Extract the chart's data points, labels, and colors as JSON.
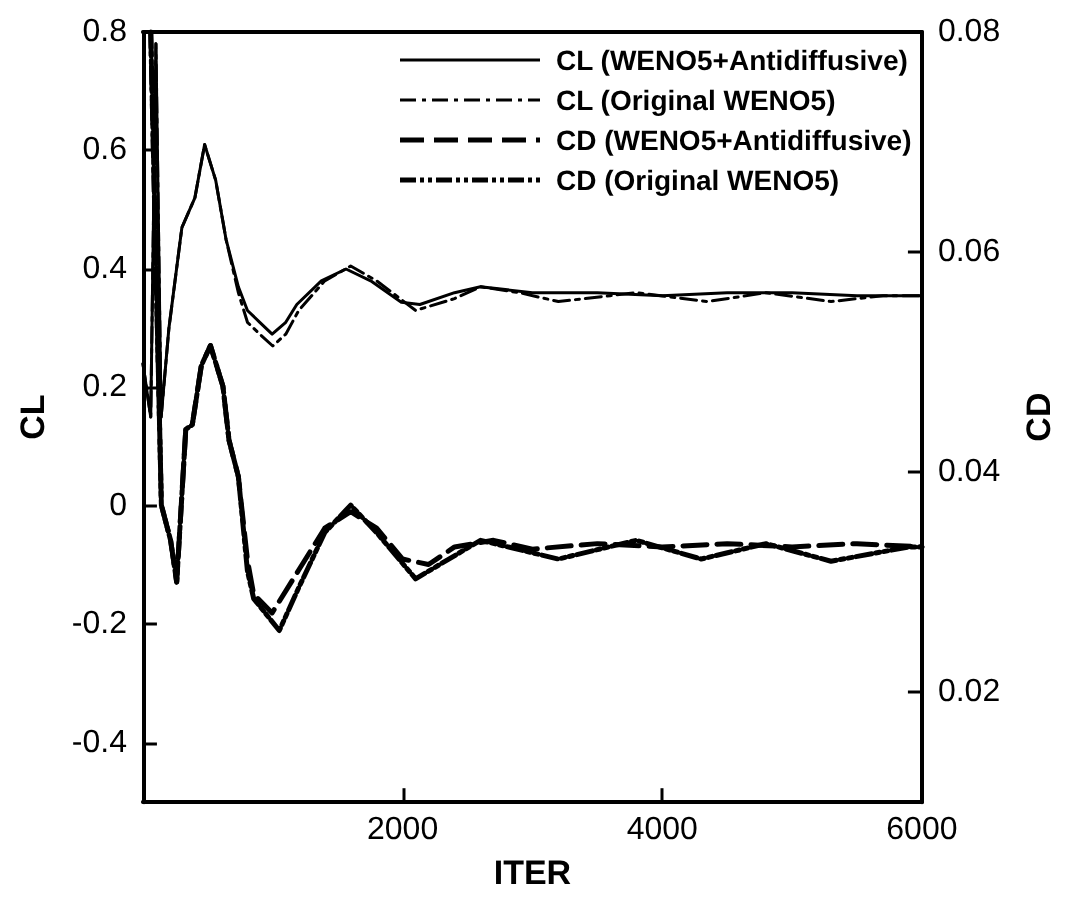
{
  "chart_data": {
    "type": "line",
    "xlabel": "ITER",
    "ylabel": "CL",
    "y2label": "CD",
    "xlim": [
      0,
      6000
    ],
    "xticks": [
      2000,
      4000,
      6000
    ],
    "ylim": [
      -0.5,
      0.8
    ],
    "yticks": [
      -0.4,
      -0.2,
      0,
      0.2,
      0.4,
      0.6,
      0.8
    ],
    "y2lim": [
      0.01,
      0.08
    ],
    "y2ticks": [
      0.02,
      0.04,
      0.06,
      0.08
    ],
    "legend": "top right",
    "grid": false,
    "marker": "none",
    "series": [
      {
        "name": "CL (WENO5+Antidiffusive)",
        "color": "#000000",
        "line_style": "solid",
        "x": [
          0,
          60,
          100,
          140,
          200,
          300,
          400,
          475,
          560,
          640,
          735,
          805,
          900,
          995,
          1100,
          1185,
          1374,
          1564,
          1754,
          1990,
          2133,
          2400,
          2600,
          3000,
          3500,
          4000,
          4500,
          5000,
          5500,
          6000
        ],
        "values": [
          0.24,
          0.15,
          0.78,
          0.15,
          0.3,
          0.47,
          0.52,
          0.61,
          0.55,
          0.45,
          0.37,
          0.33,
          0.31,
          0.29,
          0.31,
          0.34,
          0.38,
          0.4,
          0.38,
          0.344,
          0.34,
          0.36,
          0.37,
          0.36,
          0.36,
          0.355,
          0.36,
          0.36,
          0.355,
          0.355
        ]
      },
      {
        "name": "CL (Original WENO5)",
        "color": "#000000",
        "line_style": "dashdot",
        "x": [
          0,
          60,
          100,
          140,
          200,
          300,
          400,
          475,
          560,
          640,
          735,
          805,
          900,
          1000,
          1100,
          1200,
          1400,
          1600,
          1800,
          2100,
          2400,
          2600,
          2900,
          3200,
          3600,
          3800,
          4350,
          4800,
          5300,
          5700,
          6000
        ],
        "values": [
          0.24,
          0.15,
          0.78,
          0.15,
          0.3,
          0.47,
          0.52,
          0.61,
          0.55,
          0.45,
          0.36,
          0.31,
          0.29,
          0.27,
          0.29,
          0.33,
          0.38,
          0.405,
          0.38,
          0.33,
          0.35,
          0.37,
          0.36,
          0.345,
          0.355,
          0.36,
          0.345,
          0.36,
          0.345,
          0.355,
          0.355
        ]
      },
      {
        "name": "CD (WENO5+Antidiffusive)",
        "color": "#000000",
        "line_style": "dashed",
        "axis": "y2",
        "x": [
          60,
          142,
          213,
          260,
          330,
          380,
          450,
          520,
          616,
          663,
          735,
          805,
          853,
          995,
          1200,
          1400,
          1600,
          1800,
          2000,
          2200,
          2400,
          2700,
          3000,
          3500,
          4000,
          4500,
          5000,
          5500,
          6000
        ],
        "values": [
          0.08,
          0.037,
          0.0338,
          0.03,
          0.0439,
          0.0443,
          0.0497,
          0.0515,
          0.0478,
          0.0429,
          0.0396,
          0.032,
          0.0289,
          0.0272,
          0.0311,
          0.0349,
          0.0364,
          0.0349,
          0.0321,
          0.0316,
          0.0332,
          0.0338,
          0.033,
          0.0335,
          0.0332,
          0.0335,
          0.0332,
          0.0335,
          0.0332
        ]
      },
      {
        "name": "CD (Original WENO5)",
        "color": "#000000",
        "line_style": "dashdotdot",
        "axis": "y2",
        "x": [
          60,
          142,
          213,
          260,
          330,
          380,
          450,
          520,
          616,
          663,
          735,
          805,
          853,
          1050,
          1200,
          1400,
          1600,
          1800,
          2100,
          2600,
          3200,
          3800,
          4300,
          4800,
          5300,
          5900,
          6000
        ],
        "values": [
          0.08,
          0.037,
          0.0338,
          0.03,
          0.0439,
          0.0443,
          0.0497,
          0.0515,
          0.0478,
          0.0429,
          0.0396,
          0.031,
          0.0285,
          0.0256,
          0.0295,
          0.0345,
          0.037,
          0.0345,
          0.0303,
          0.0338,
          0.0321,
          0.0338,
          0.0321,
          0.0335,
          0.0319,
          0.0332,
          0.0332
        ]
      }
    ]
  }
}
